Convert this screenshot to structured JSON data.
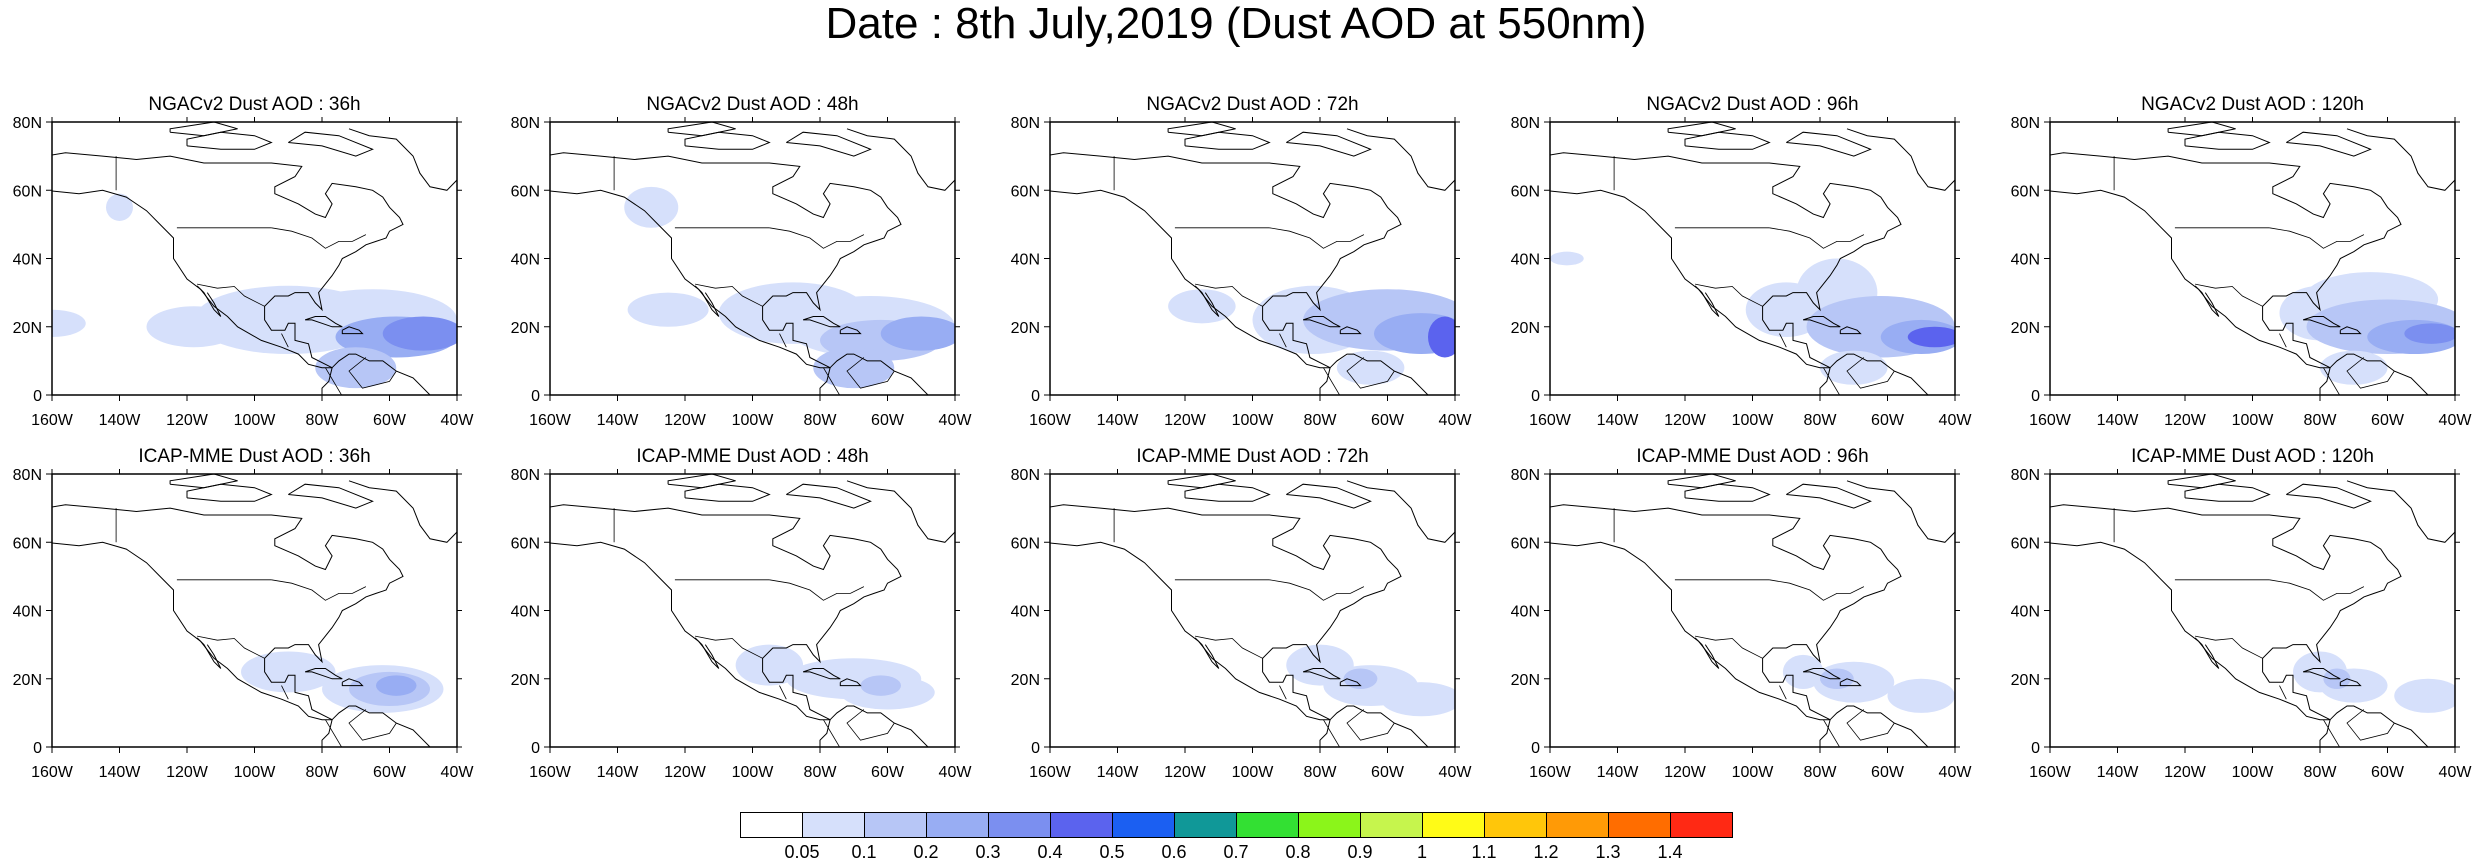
{
  "title": "Date : 8th July,2019 (Dust AOD at 550nm)",
  "axes": {
    "lon_ticks": [
      "160W",
      "140W",
      "120W",
      "100W",
      "80W",
      "60W",
      "40W"
    ],
    "lat_ticks": [
      "80N",
      "60N",
      "40N",
      "20N",
      "0"
    ],
    "lon_range": [
      -160,
      -40
    ],
    "lat_range": [
      0,
      80
    ]
  },
  "panels": [
    {
      "title": "NGACv2 Dust AOD : 36h",
      "model": "NGACv2",
      "lead": "36h"
    },
    {
      "title": "NGACv2 Dust AOD : 48h",
      "model": "NGACv2",
      "lead": "48h"
    },
    {
      "title": "NGACv2 Dust AOD : 72h",
      "model": "NGACv2",
      "lead": "72h"
    },
    {
      "title": "NGACv2 Dust AOD : 96h",
      "model": "NGACv2",
      "lead": "96h"
    },
    {
      "title": "NGACv2 Dust AOD : 120h",
      "model": "NGACv2",
      "lead": "120h"
    },
    {
      "title": "ICAP-MME Dust AOD : 36h",
      "model": "ICAP-MME",
      "lead": "36h"
    },
    {
      "title": "ICAP-MME Dust AOD : 48h",
      "model": "ICAP-MME",
      "lead": "48h"
    },
    {
      "title": "ICAP-MME Dust AOD : 72h",
      "model": "ICAP-MME",
      "lead": "72h"
    },
    {
      "title": "ICAP-MME Dust AOD : 96h",
      "model": "ICAP-MME",
      "lead": "96h"
    },
    {
      "title": "ICAP-MME Dust AOD : 120h",
      "model": "ICAP-MME",
      "lead": "120h"
    }
  ],
  "colorbar": {
    "labels": [
      "0.05",
      "0.1",
      "0.2",
      "0.3",
      "0.4",
      "0.5",
      "0.6",
      "0.7",
      "0.8",
      "0.9",
      "1",
      "1.1",
      "1.2",
      "1.3",
      "1.4"
    ],
    "colors": [
      "#ffffff",
      "#d6e0fb",
      "#b7c6f6",
      "#98adf3",
      "#7b8ff0",
      "#5b63ee",
      "#1b5ff2",
      "#109898",
      "#33e033",
      "#8bf51a",
      "#c6f54d",
      "#fffb17",
      "#ffc60a",
      "#ff9a06",
      "#ff6d00",
      "#ff2914"
    ]
  },
  "map_colors": {
    "level1": "#d6e0fb",
    "level2": "#b7c6f6",
    "level3": "#98adf3",
    "level4": "#7b8ff0",
    "level5": "#5b63ee"
  }
}
